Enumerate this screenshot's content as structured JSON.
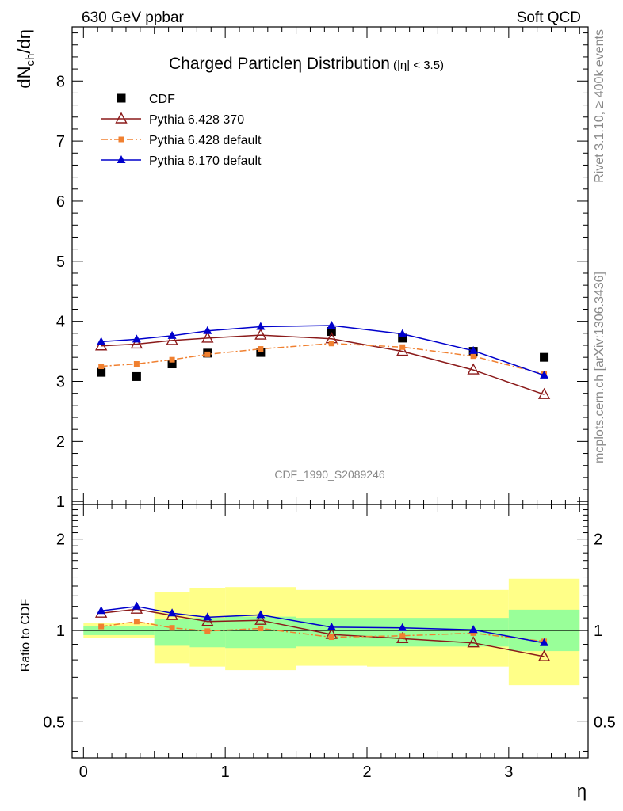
{
  "header": {
    "left": "630 GeV ppbar",
    "right": "Soft QCD"
  },
  "side_labels": {
    "rivet": "Rivet 3.1.10, ≥ 400k events",
    "mcplots": "mcplots.cern.ch [arXiv:1306.3436]"
  },
  "chart_data": [
    {
      "panel": "main",
      "type": "line",
      "title": "Charged Particleη Distribution",
      "title_suffix": "(|η| < 3.5)",
      "ylabel": "dN_ch/dη",
      "ylabel_main": "dN",
      "ylabel_sub": "ch",
      "ylabel_tail": "/dη",
      "xlim": [
        -0.08,
        3.56
      ],
      "ylim": [
        0.95,
        8.9
      ],
      "yticks": [
        "1",
        "2",
        "3",
        "4",
        "5",
        "6",
        "7",
        "8"
      ],
      "watermark": "CDF_1990_S2089246",
      "legend_position": "top-left",
      "series": [
        {
          "name": "CDF",
          "color": "#000000",
          "marker": "square",
          "line": "none",
          "x": [
            0.125,
            0.375,
            0.625,
            0.875,
            1.25,
            1.75,
            2.25,
            2.75,
            3.25
          ],
          "y": [
            3.15,
            3.08,
            3.29,
            3.47,
            3.48,
            3.83,
            3.72,
            3.5,
            3.4
          ]
        },
        {
          "name": "Pythia 6.428 370",
          "color": "#8b1a1a",
          "marker": "triangle-open",
          "line": "solid",
          "x": [
            0.125,
            0.375,
            0.625,
            0.875,
            1.25,
            1.75,
            2.25,
            2.75,
            3.25
          ],
          "y": [
            3.59,
            3.62,
            3.68,
            3.72,
            3.77,
            3.71,
            3.5,
            3.19,
            2.78
          ]
        },
        {
          "name": "Pythia 6.428 default",
          "color": "#f08030",
          "marker": "square-small",
          "line": "dashdot",
          "x": [
            0.125,
            0.375,
            0.625,
            0.875,
            1.25,
            1.75,
            2.25,
            2.75,
            3.25
          ],
          "y": [
            3.25,
            3.29,
            3.36,
            3.45,
            3.54,
            3.63,
            3.57,
            3.42,
            3.12
          ]
        },
        {
          "name": "Pythia 8.170 default",
          "color": "#0000cc",
          "marker": "triangle-filled",
          "line": "solid",
          "x": [
            0.125,
            0.375,
            0.625,
            0.875,
            1.25,
            1.75,
            2.25,
            2.75,
            3.25
          ],
          "y": [
            3.66,
            3.7,
            3.76,
            3.84,
            3.91,
            3.93,
            3.79,
            3.51,
            3.1
          ]
        }
      ]
    },
    {
      "panel": "ratio",
      "type": "line",
      "ylabel": "Ratio to CDF",
      "xlabel": "η",
      "scale": "log",
      "xlim": [
        -0.08,
        3.56
      ],
      "ylim": [
        0.38,
        2.6
      ],
      "yticks": [
        "0.5",
        "1",
        "2"
      ],
      "xticks": [
        "0",
        "1",
        "2",
        "3"
      ],
      "bands": [
        {
          "x0": 0.0,
          "x1": 0.5,
          "y_inner": [
            0.965,
            1.035
          ],
          "y_outer": [
            0.945,
            1.06
          ]
        },
        {
          "x0": 0.5,
          "x1": 0.75,
          "y_inner": [
            0.89,
            1.09
          ],
          "y_outer": [
            0.78,
            1.34
          ]
        },
        {
          "x0": 0.75,
          "x1": 1.0,
          "y_inner": [
            0.88,
            1.1
          ],
          "y_outer": [
            0.76,
            1.38
          ]
        },
        {
          "x0": 1.0,
          "x1": 1.5,
          "y_inner": [
            0.875,
            1.11
          ],
          "y_outer": [
            0.74,
            1.39
          ]
        },
        {
          "x0": 1.5,
          "x1": 2.0,
          "y_inner": [
            0.885,
            1.1
          ],
          "y_outer": [
            0.765,
            1.36
          ]
        },
        {
          "x0": 2.0,
          "x1": 2.5,
          "y_inner": [
            0.885,
            1.1
          ],
          "y_outer": [
            0.76,
            1.36
          ]
        },
        {
          "x0": 2.5,
          "x1": 3.0,
          "y_inner": [
            0.885,
            1.1
          ],
          "y_outer": [
            0.76,
            1.36
          ]
        },
        {
          "x0": 3.0,
          "x1": 3.5,
          "y_inner": [
            0.855,
            1.17
          ],
          "y_outer": [
            0.66,
            1.48
          ]
        }
      ],
      "series": [
        {
          "name": "Pythia 6.428 370",
          "color": "#8b1a1a",
          "marker": "triangle-open",
          "line": "solid",
          "x": [
            0.125,
            0.375,
            0.625,
            0.875,
            1.25,
            1.75,
            2.25,
            2.75,
            3.25
          ],
          "y": [
            1.14,
            1.175,
            1.12,
            1.07,
            1.08,
            0.97,
            0.94,
            0.91,
            0.82
          ]
        },
        {
          "name": "Pythia 6.428 default",
          "color": "#f08030",
          "marker": "square-small",
          "line": "dashdot",
          "x": [
            0.125,
            0.375,
            0.625,
            0.875,
            1.25,
            1.75,
            2.25,
            2.75,
            3.25
          ],
          "y": [
            1.03,
            1.07,
            1.02,
            0.995,
            1.015,
            0.95,
            0.96,
            0.98,
            0.92
          ]
        },
        {
          "name": "Pythia 8.170 default",
          "color": "#0000cc",
          "marker": "triangle-filled",
          "line": "solid",
          "x": [
            0.125,
            0.375,
            0.625,
            0.875,
            1.25,
            1.75,
            2.25,
            2.75,
            3.25
          ],
          "y": [
            1.16,
            1.2,
            1.14,
            1.105,
            1.125,
            1.025,
            1.02,
            1.005,
            0.91
          ]
        }
      ]
    }
  ]
}
